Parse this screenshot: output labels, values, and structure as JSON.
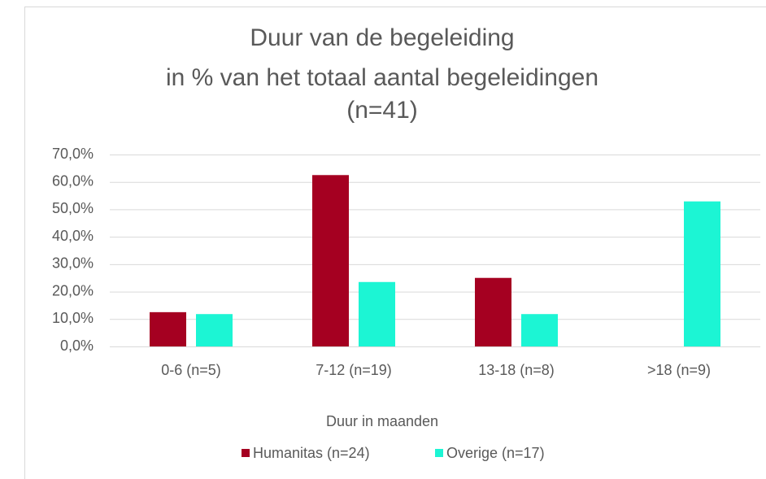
{
  "chart_data": {
    "type": "bar",
    "title": [
      "Duur van de begeleiding",
      "in % van het totaal aantal begeleidingen",
      "(n=41)"
    ],
    "x_label": "Duur in maanden",
    "categories": [
      "0-6 (n=5)",
      "7-12 (n=19)",
      "13-18 (n=8)",
      ">18 (n=9)"
    ],
    "series": [
      {
        "name": "Humanitas (n=24)",
        "color": "#a50021",
        "values": [
          12.5,
          62.5,
          25.0,
          0.0
        ]
      },
      {
        "name": "Overige (n=17)",
        "color": "#1cf5d4",
        "values": [
          11.8,
          23.5,
          11.8,
          52.9
        ]
      }
    ],
    "ylim": [
      0,
      70
    ],
    "yticks": [
      {
        "value": 0,
        "label": "0,0%"
      },
      {
        "value": 10,
        "label": "10,0%"
      },
      {
        "value": 20,
        "label": "20,0%"
      },
      {
        "value": 30,
        "label": "30,0%"
      },
      {
        "value": 40,
        "label": "40,0%"
      },
      {
        "value": 50,
        "label": "50,0%"
      },
      {
        "value": 60,
        "label": "60,0%"
      },
      {
        "value": 70,
        "label": "70,0%"
      }
    ],
    "grid": true,
    "legend": "bottom"
  }
}
